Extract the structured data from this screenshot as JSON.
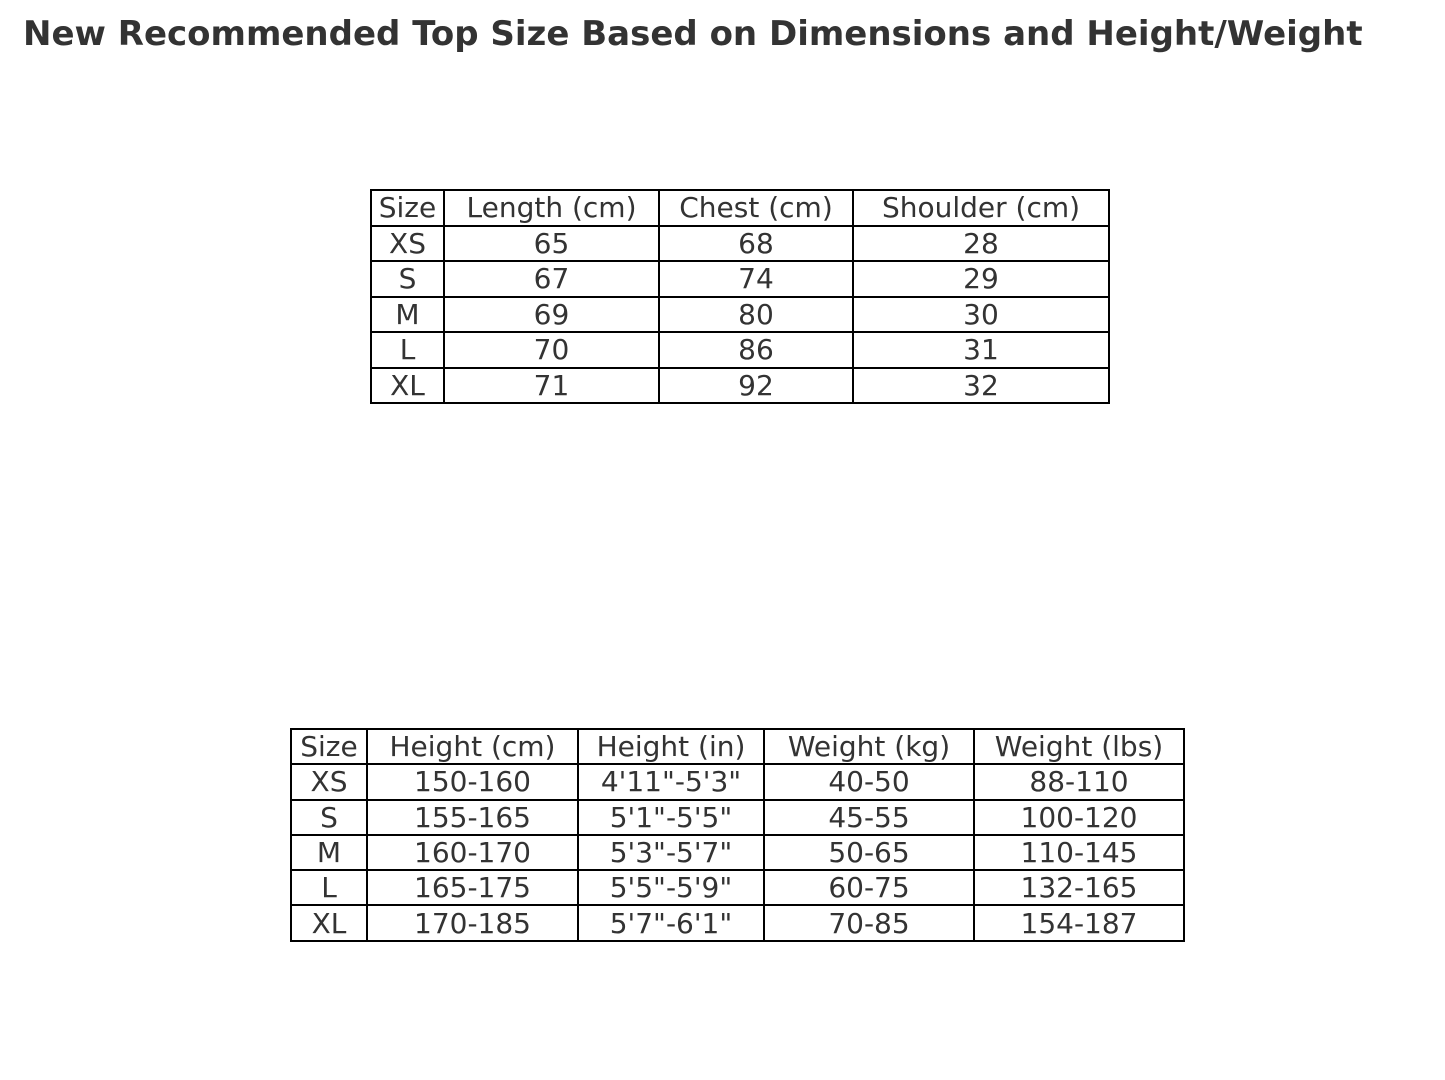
{
  "page": {
    "title": "New Recommended Top Size Based on Dimensions and Height/Weight"
  },
  "colors": {
    "background": "#ffffff",
    "text": "#333333",
    "table_border": "#000000"
  },
  "chart_data": [
    {
      "type": "table",
      "title": "New Recommended Top Size Based on Dimensions and Height/Weight",
      "columns": [
        "Size",
        "Length (cm)",
        "Chest (cm)",
        "Shoulder (cm)"
      ],
      "rows": [
        [
          "XS",
          "65",
          "68",
          "28"
        ],
        [
          "S",
          "67",
          "74",
          "29"
        ],
        [
          "M",
          "69",
          "80",
          "30"
        ],
        [
          "L",
          "70",
          "86",
          "31"
        ],
        [
          "XL",
          "71",
          "92",
          "32"
        ]
      ]
    },
    {
      "type": "table",
      "columns": [
        "Size",
        "Height (cm)",
        "Height (in)",
        "Weight (kg)",
        "Weight (lbs)"
      ],
      "rows": [
        [
          "XS",
          "150-160",
          "4'11\"-5'3\"",
          "40-50",
          "88-110"
        ],
        [
          "S",
          "155-165",
          "5'1\"-5'5\"",
          "45-55",
          "100-120"
        ],
        [
          "M",
          "160-170",
          "5'3\"-5'7\"",
          "50-65",
          "110-145"
        ],
        [
          "L",
          "165-175",
          "5'5\"-5'9\"",
          "60-75",
          "132-165"
        ],
        [
          "XL",
          "170-185",
          "5'7\"-6'1\"",
          "70-85",
          "154-187"
        ]
      ]
    }
  ]
}
